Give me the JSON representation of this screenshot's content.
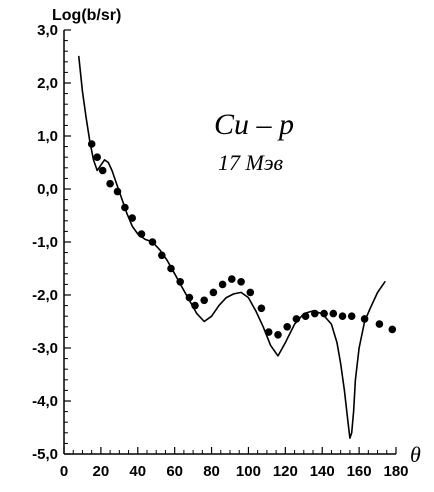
{
  "chart_data": {
    "type": "scatter",
    "title": "",
    "xlabel": "θ",
    "ylabel": "Log(b/sr)",
    "x_ticks": [
      0,
      20,
      40,
      60,
      80,
      100,
      120,
      140,
      160,
      180
    ],
    "x_tick_labels": [
      "0",
      "20",
      "40",
      "60",
      "80",
      "100",
      "120",
      "140",
      "160",
      "180"
    ],
    "y_ticks": [
      -5,
      -4,
      -3,
      -2,
      -1,
      0,
      1,
      2,
      3
    ],
    "y_tick_labels": [
      "-5,0",
      "-4,0",
      "-3,0",
      "-2,0",
      "-1,0",
      "0,0",
      "1,0",
      "2,0",
      "3,0"
    ],
    "xlim": [
      0,
      180
    ],
    "ylim": [
      -5,
      3
    ],
    "grid": false,
    "legend": "none",
    "annotations": {
      "main": "Cu – p",
      "sub": "17 Мэв"
    },
    "series": [
      {
        "kind": "points",
        "x": [
          15,
          18,
          21,
          25,
          29,
          33,
          37,
          42,
          48,
          53,
          58,
          63,
          68,
          71,
          76,
          81,
          86,
          91,
          96,
          101,
          107,
          111,
          116,
          121,
          126,
          131,
          136,
          141,
          146,
          151,
          156,
          163,
          171,
          178
        ],
        "y": [
          0.85,
          0.6,
          0.35,
          0.1,
          -0.05,
          -0.35,
          -0.55,
          -0.85,
          -1.0,
          -1.25,
          -1.5,
          -1.75,
          -2.05,
          -2.2,
          -2.1,
          -1.95,
          -1.8,
          -1.7,
          -1.75,
          -1.95,
          -2.25,
          -2.7,
          -2.75,
          -2.6,
          -2.45,
          -2.4,
          -2.35,
          -2.35,
          -2.35,
          -2.4,
          -2.4,
          -2.45,
          -2.55,
          -2.65
        ]
      },
      {
        "kind": "line",
        "x": [
          8,
          10,
          12,
          14,
          16,
          18,
          20,
          22,
          24,
          26,
          28,
          31,
          34,
          37,
          40,
          44,
          48,
          52,
          56,
          60,
          64,
          68,
          72,
          76,
          80,
          84,
          88,
          92,
          96,
          100,
          104,
          108,
          112,
          116,
          120,
          125,
          130,
          135,
          140,
          145,
          148,
          150,
          152,
          154,
          155,
          156,
          157,
          158,
          160,
          163,
          166,
          170,
          174
        ],
        "y": [
          2.5,
          1.85,
          1.35,
          0.9,
          0.55,
          0.35,
          0.45,
          0.55,
          0.5,
          0.35,
          0.15,
          -0.15,
          -0.45,
          -0.7,
          -0.85,
          -0.95,
          -1.0,
          -1.15,
          -1.35,
          -1.6,
          -1.85,
          -2.1,
          -2.35,
          -2.5,
          -2.4,
          -2.2,
          -2.05,
          -1.98,
          -1.95,
          -2.05,
          -2.3,
          -2.6,
          -2.95,
          -3.15,
          -2.9,
          -2.55,
          -2.35,
          -2.3,
          -2.35,
          -2.55,
          -2.9,
          -3.3,
          -3.8,
          -4.4,
          -4.7,
          -4.6,
          -4.2,
          -3.6,
          -3.0,
          -2.5,
          -2.25,
          -1.95,
          -1.75
        ]
      }
    ]
  }
}
